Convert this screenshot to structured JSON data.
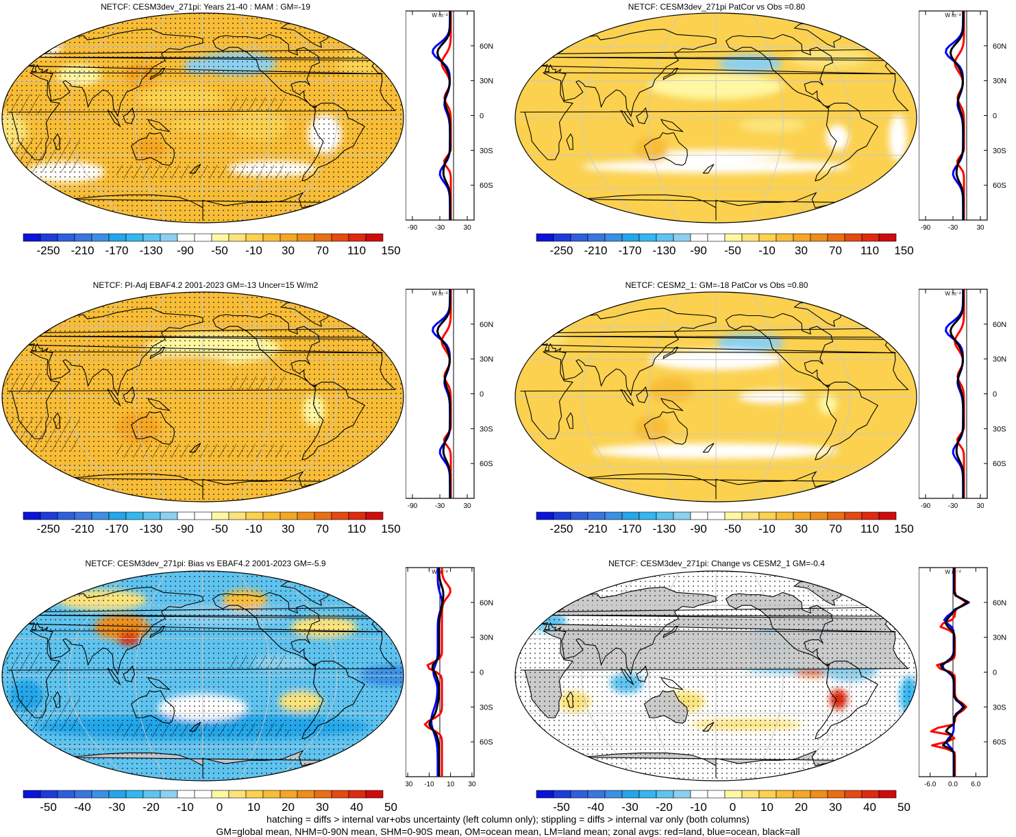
{
  "panels": [
    {
      "title": "NETCF: CESM3dev_271pi: Years 21-40 : MAM : GM=-19",
      "type": "climatology",
      "colorbar_labels": [
        "-250",
        "-210",
        "-170",
        "-130",
        "-90",
        "-50",
        "-10",
        "30",
        "70",
        "110",
        "150"
      ],
      "zonal": {
        "unit": "W m⁻²",
        "x_ticks": [
          "-90",
          "-30",
          "30"
        ],
        "y_ticks": [
          "60N",
          "30N",
          "0",
          "30S",
          "60S"
        ]
      }
    },
    {
      "title": "NETCF: CESM3dev_271pi PatCor vs Obs =0.80",
      "type": "climatology",
      "colorbar_labels": [
        "-250",
        "-210",
        "-170",
        "-130",
        "-90",
        "-50",
        "-10",
        "30",
        "70",
        "110",
        "150"
      ],
      "zonal": {
        "unit": "W m⁻²",
        "x_ticks": [
          "-90",
          "-30",
          "30"
        ],
        "y_ticks": [
          "60N",
          "30N",
          "0",
          "30S",
          "60S"
        ]
      }
    },
    {
      "title": "NETCF: PI-Adj EBAF4.2 2001-2023 GM=-13 Uncer=15 W/m2",
      "type": "climatology",
      "colorbar_labels": [
        "-250",
        "-210",
        "-170",
        "-130",
        "-90",
        "-50",
        "-10",
        "30",
        "70",
        "110",
        "150"
      ],
      "zonal": {
        "unit": "W m⁻²",
        "x_ticks": [
          "-90",
          "-30",
          "30"
        ],
        "y_ticks": [
          "60N",
          "30N",
          "0",
          "30S",
          "60S"
        ]
      }
    },
    {
      "title": "NETCF: CESM2_1: GM=-18 PatCor vs Obs =0.80",
      "type": "climatology",
      "colorbar_labels": [
        "-250",
        "-210",
        "-170",
        "-130",
        "-90",
        "-50",
        "-10",
        "30",
        "70",
        "110",
        "150"
      ],
      "zonal": {
        "unit": "W m⁻²",
        "x_ticks": [
          "-90",
          "-30",
          "30"
        ],
        "y_ticks": [
          "60N",
          "30N",
          "0",
          "30S",
          "60S"
        ]
      }
    },
    {
      "title": "NETCF: CESM3dev_271pi: Bias vs EBAF4.2 2001-2023 GM=-5.9",
      "type": "bias",
      "colorbar_labels": [
        "-50",
        "-40",
        "-30",
        "-20",
        "-10",
        "0",
        "10",
        "20",
        "30",
        "40",
        "50"
      ],
      "zonal": {
        "unit": "W m⁻²",
        "x_ticks": [
          "-30",
          "-10",
          "10",
          "30"
        ],
        "y_ticks": [
          "60N",
          "30N",
          "0",
          "30S",
          "60S"
        ]
      }
    },
    {
      "title": "NETCF: CESM3dev_271pi: Change vs CESM2_1 GM=-0.4",
      "type": "change",
      "colorbar_labels": [
        "-50",
        "-40",
        "-30",
        "-20",
        "-10",
        "0",
        "10",
        "20",
        "30",
        "40",
        "50"
      ],
      "zonal": {
        "unit": "W m⁻²",
        "x_ticks": [
          "-6.0",
          "0.0",
          "6.0"
        ],
        "y_ticks": [
          "60N",
          "30N",
          "0",
          "30S",
          "60S"
        ]
      }
    }
  ],
  "colors": {
    "palette": [
      "#0a14d9",
      "#1e3cd9",
      "#2f5fdc",
      "#3a76e0",
      "#3b90e6",
      "#23a6ea",
      "#35b6ee",
      "#5fc3ef",
      "#8cd0ef",
      "#ffffff",
      "#ffffff",
      "#fff7a3",
      "#fce37a",
      "#fbd14f",
      "#f8bd37",
      "#f5a623",
      "#ef8d1a",
      "#ea6f14",
      "#e44a12",
      "#df2a10",
      "#cf0c0c"
    ],
    "land_missing": "#c8c8c8",
    "grid": "#c9c9c9",
    "coast": "#000000",
    "zonal_land": "#ff0000",
    "zonal_ocean": "#0000ff",
    "zonal_all": "#000000"
  },
  "footer": {
    "line1": "hatching = diffs > internal var+obs uncertainty (left column only); stippling = diffs > internal var only (both columns)",
    "line2": "GM=global mean, NHM=0-90N mean, SHM=0-90S mean, OM=ocean mean, LM=land mean; zonal avgs: red=land, blue=ocean, black=all"
  }
}
